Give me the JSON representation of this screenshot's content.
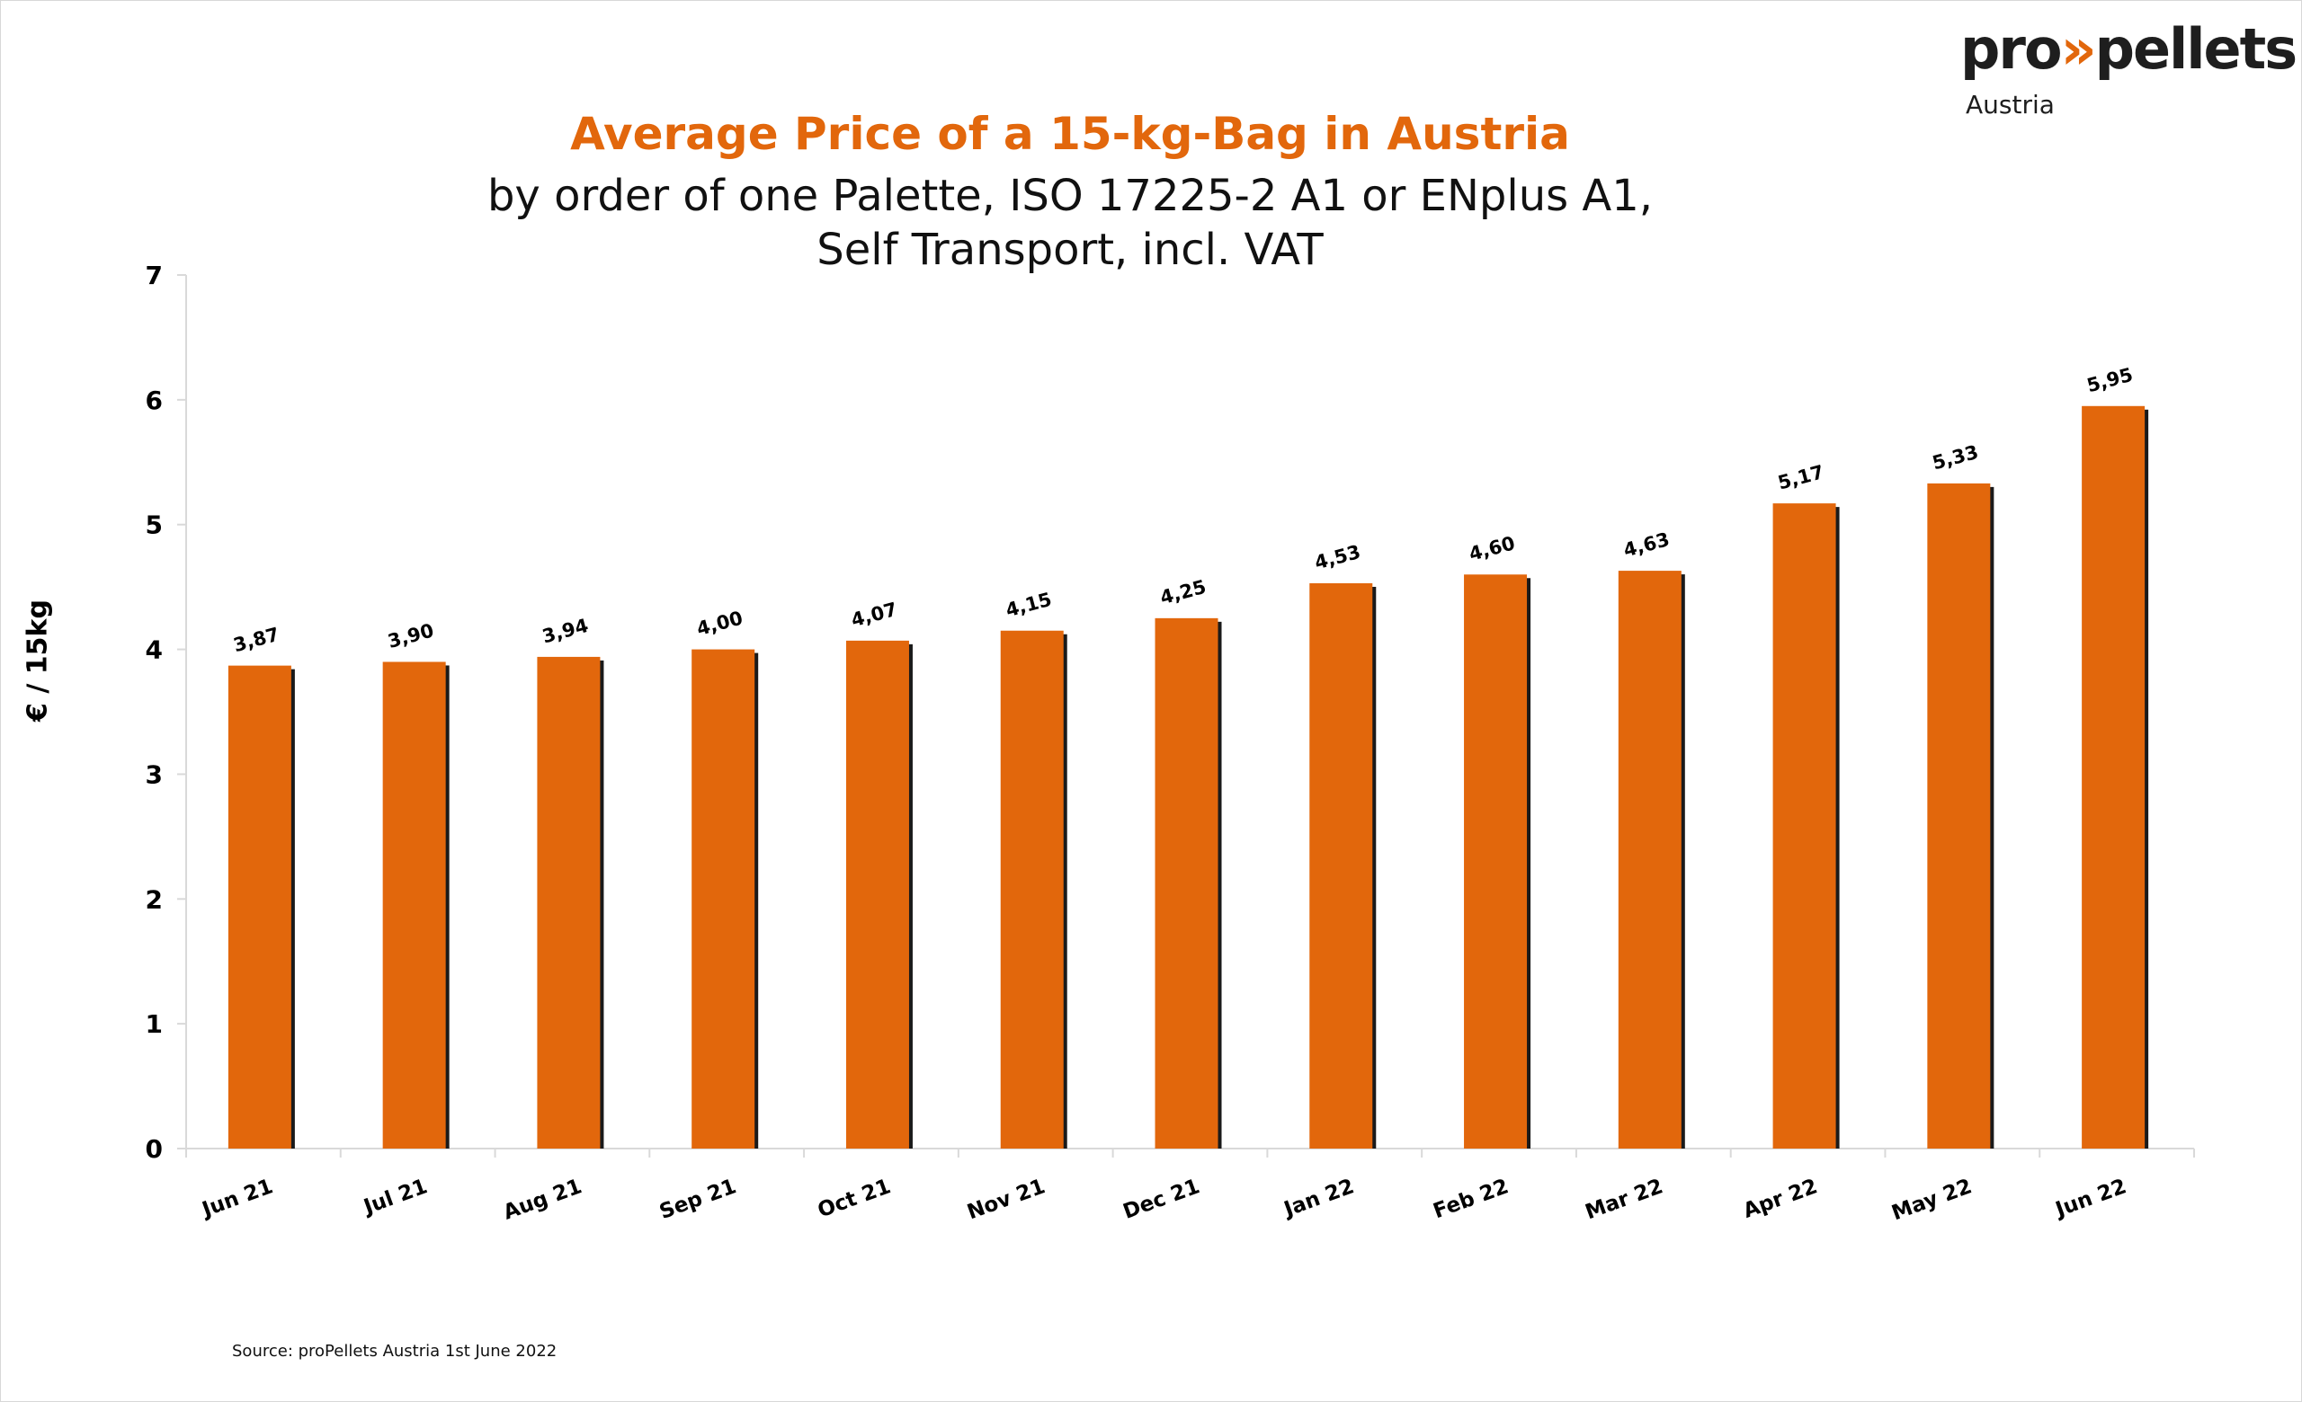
{
  "logo": {
    "word_pre": "pro",
    "word_chevron": "»",
    "word_post": "pellets",
    "sub": "Austria"
  },
  "colors": {
    "accent": "#E2670C",
    "bar": "#E2670C",
    "bar_shadow": "#1A1A1A",
    "axis": "#D9D9D9",
    "text": "#000000"
  },
  "source": "Source: proPellets Austria 1st June 2022",
  "chart_data": {
    "type": "bar",
    "title": "Average Price of a 15-kg-Bag in Austria",
    "subtitle_lines": [
      "by order of one Palette, ISO 17225-2 A1 or ENplus A1,",
      "Self Transport, incl. VAT"
    ],
    "xlabel": "",
    "ylabel": "€ / 15kg",
    "ylim": [
      0,
      7
    ],
    "yticks": [
      "0",
      "1",
      "2",
      "3",
      "4",
      "5",
      "6",
      "7"
    ],
    "grid": false,
    "categories": [
      "Jun 21",
      "Jul 21",
      "Aug 21",
      "Sep 21",
      "Oct 21",
      "Nov 21",
      "Dec 21",
      "Jan 22",
      "Feb 22",
      "Mar 22",
      "Apr 22",
      "May 22",
      "Jun 22"
    ],
    "values": [
      3.87,
      3.9,
      3.94,
      4.0,
      4.07,
      4.15,
      4.25,
      4.53,
      4.6,
      4.63,
      5.17,
      5.33,
      5.95
    ],
    "data_labels": [
      "3,87",
      "3,90",
      "3,94",
      "4,00",
      "4,07",
      "4,15",
      "4,25",
      "4,53",
      "4,60",
      "4,63",
      "5,17",
      "5,33",
      "5,95"
    ]
  }
}
